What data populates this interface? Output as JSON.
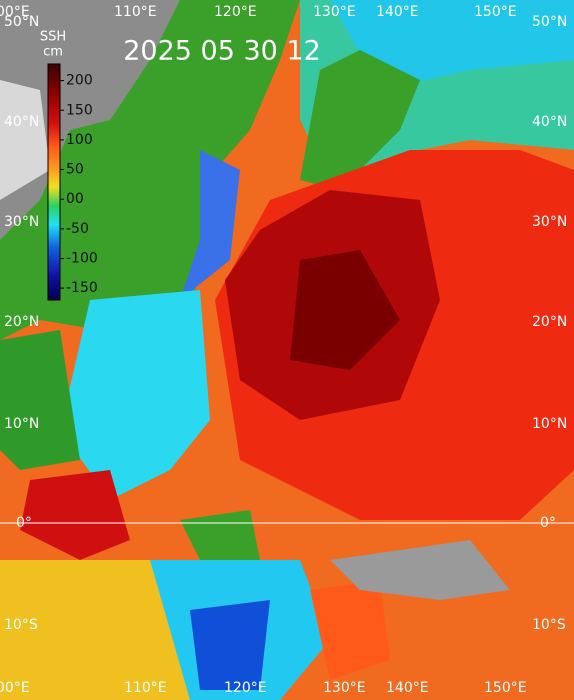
{
  "title": "2025 05 30 12",
  "colorbar": {
    "title": "SSH",
    "unit": "cm",
    "lim": [
      -170,
      228
    ],
    "ticks": [
      200,
      150,
      100,
      50,
      {
        "value": 0,
        "label": "00"
      },
      -50,
      -100,
      -150
    ]
  },
  "lon_labels_top": [
    "00°E",
    "110°E",
    "120°E",
    "130°E",
    "140°E",
    "150°E"
  ],
  "lon_labels_bottom": [
    "00°E",
    "110°E",
    "120°E",
    "130°E",
    "140°E",
    "150°E"
  ],
  "lat_labels_left": [
    "50°N",
    "40°N",
    "30°N",
    "20°N",
    "10°N",
    "0°",
    "10°S"
  ],
  "lat_labels_right": [
    "50°N",
    "40°N",
    "30°N",
    "20°N",
    "10°N",
    "0°",
    "10°S"
  ]
}
